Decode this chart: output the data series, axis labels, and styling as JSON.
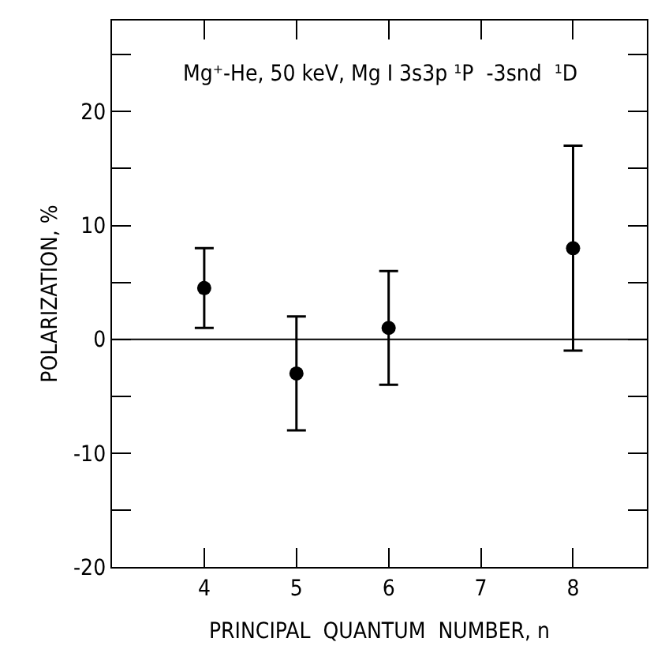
{
  "chart_data": {
    "type": "scatter",
    "xlabel": "PRINCIPAL  QUANTUM  NUMBER, n",
    "ylabel": "POLARIZATION, %",
    "annotations": [
      "Mg⁺-He, 50 keV, Mg I 3s3p ¹P  -3snd  ¹D"
    ],
    "x": [
      4,
      5,
      6,
      8
    ],
    "values": [
      4.5,
      -3,
      1,
      8
    ],
    "errors": [
      3.5,
      5,
      5,
      9
    ],
    "color": "#000000",
    "marker": "circle",
    "xlim": [
      3,
      8.8
    ],
    "xticks": [
      4,
      5,
      6,
      7,
      8
    ],
    "ylim": [
      -20,
      28
    ],
    "yticks": [
      -20,
      {
        "value": -15,
        "label": null
      },
      -10,
      {
        "value": -5,
        "label": null
      },
      0,
      {
        "value": 5,
        "label": null
      },
      10,
      {
        "value": 15,
        "label": null
      },
      20,
      {
        "value": 25,
        "label": null
      }
    ],
    "ref_lines": [
      {
        "axis": "y",
        "value": 0,
        "color": "#000000"
      }
    ]
  }
}
